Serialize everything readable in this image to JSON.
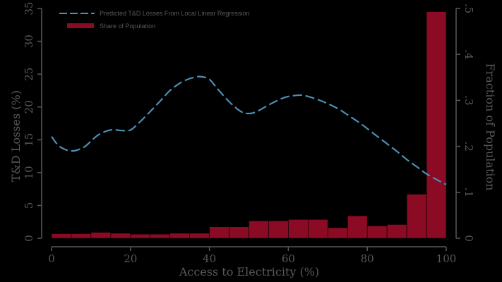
{
  "chart_data": {
    "type": "bar+line",
    "xlabel": "Access to Electricity (%)",
    "ylabel_left": "T&D Losses (%)",
    "ylabel_right": "Fraction of Population",
    "x_ticks": [
      "0",
      "20",
      "40",
      "60",
      "80",
      "100"
    ],
    "y_left_ticks": [
      "0",
      "5",
      "10",
      "15",
      "20",
      "25",
      "30",
      "35"
    ],
    "y_right_ticks": [
      "0",
      ".1",
      ".2",
      ".3",
      ".4",
      ".5"
    ],
    "xlim": [
      0,
      100
    ],
    "ylim_left": [
      0,
      35
    ],
    "ylim_right": [
      0,
      0.5
    ],
    "legend_position": "top-left",
    "colors": {
      "bar": "#8b0a24",
      "line": "#4c8fb5",
      "text": "#595959",
      "axis": "#595959",
      "background": "#000000"
    },
    "series": [
      {
        "name": "Predicted T&D Losses From Local Linear Regression",
        "kind": "line",
        "style": "dashed",
        "axis": "left",
        "x": [
          0,
          2,
          5,
          8,
          10,
          12,
          15,
          18,
          20,
          22,
          25,
          28,
          30,
          33,
          36,
          38,
          40,
          42,
          45,
          48,
          50,
          52,
          55,
          58,
          60,
          63,
          65,
          68,
          70,
          73,
          75,
          78,
          80,
          83,
          85,
          88,
          90,
          93,
          95,
          98,
          100
        ],
        "y": [
          15.5,
          14.0,
          13.3,
          13.8,
          14.8,
          15.8,
          16.5,
          16.4,
          16.5,
          17.5,
          19.3,
          21.2,
          22.5,
          23.8,
          24.5,
          24.6,
          24.2,
          22.8,
          20.8,
          19.3,
          19.0,
          19.3,
          20.3,
          21.2,
          21.6,
          21.8,
          21.6,
          21.0,
          20.5,
          19.6,
          18.8,
          17.6,
          16.7,
          15.3,
          14.4,
          13.0,
          12.0,
          10.7,
          9.8,
          8.8,
          8.2
        ]
      },
      {
        "name": "Share of Population",
        "kind": "bar",
        "axis": "right",
        "bin_width": 5,
        "bin_starts": [
          0,
          5,
          10,
          15,
          20,
          25,
          30,
          35,
          40,
          45,
          50,
          55,
          60,
          65,
          70,
          75,
          80,
          85,
          90,
          95
        ],
        "values": [
          0.01,
          0.01,
          0.013,
          0.011,
          0.009,
          0.009,
          0.011,
          0.011,
          0.025,
          0.025,
          0.038,
          0.038,
          0.041,
          0.041,
          0.023,
          0.049,
          0.027,
          0.03,
          0.096,
          0.493
        ]
      }
    ]
  }
}
